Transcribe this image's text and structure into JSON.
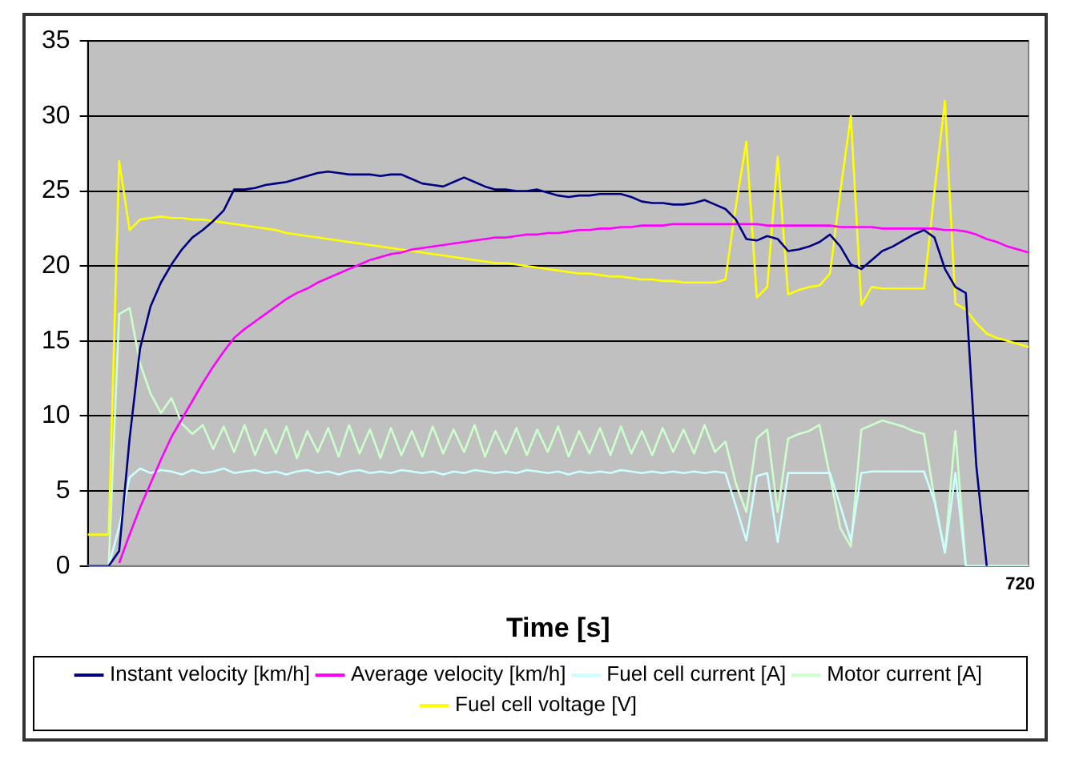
{
  "chart_data": {
    "type": "line",
    "xlabel": "Time [s]",
    "annotations": [
      "720"
    ],
    "ylim": [
      0,
      35
    ],
    "yticks": [
      0,
      5,
      10,
      15,
      20,
      25,
      30,
      35
    ],
    "grid": "y",
    "legend": "bottom",
    "marker": "none",
    "line_style": "solid",
    "categories": [
      null,
      null,
      null,
      null,
      null,
      null,
      null,
      null,
      null,
      null,
      null,
      null,
      null,
      null,
      null,
      null,
      null,
      null,
      null,
      null,
      null,
      null,
      null,
      null,
      null,
      null,
      null,
      null,
      null,
      null,
      null,
      null,
      null,
      null,
      null,
      null,
      null,
      null,
      null,
      null,
      null,
      null,
      null,
      null,
      null,
      null,
      null,
      null,
      null,
      null,
      null,
      null,
      null,
      null,
      null,
      null,
      null,
      null,
      null,
      null,
      null,
      null,
      null,
      null,
      null,
      null,
      null,
      null,
      null,
      null,
      null,
      null,
      null,
      null,
      null,
      null,
      null,
      null,
      null,
      null,
      null,
      null,
      null,
      null,
      null,
      null,
      null,
      null,
      null,
      null,
      null
    ],
    "series": [
      {
        "name": "Instant velocity [km/h]",
        "color": "#000080",
        "values": [
          0,
          0,
          0,
          1.0,
          8.5,
          14.5,
          17.3,
          18.9,
          20.1,
          21.1,
          21.9,
          22.4,
          23.0,
          23.7,
          25.1,
          25.1,
          25.2,
          25.4,
          25.5,
          25.6,
          25.8,
          26.0,
          26.2,
          26.3,
          26.2,
          26.1,
          26.1,
          26.1,
          26.0,
          26.1,
          26.1,
          25.8,
          25.5,
          25.4,
          25.3,
          25.6,
          25.9,
          25.6,
          25.3,
          25.1,
          25.1,
          25.0,
          25.0,
          25.1,
          24.9,
          24.7,
          24.6,
          24.7,
          24.7,
          24.8,
          24.8,
          24.8,
          24.6,
          24.3,
          24.2,
          24.2,
          24.1,
          24.1,
          24.2,
          24.4,
          24.1,
          23.8,
          23.1,
          21.8,
          21.7,
          22.0,
          21.8,
          21.0,
          21.1,
          21.3,
          21.6,
          22.1,
          21.3,
          20.1,
          19.8,
          20.4,
          21.0,
          21.3,
          21.7,
          22.1,
          22.4,
          21.9,
          19.8,
          18.6,
          18.2,
          6.7,
          0,
          null,
          null,
          null,
          null
        ]
      },
      {
        "name": "Average velocity [km/h]",
        "color": "#ff00ff",
        "values": [
          null,
          null,
          null,
          0.2,
          2.1,
          3.9,
          5.5,
          7.1,
          8.6,
          9.8,
          11.0,
          12.2,
          13.3,
          14.3,
          15.2,
          15.8,
          16.3,
          16.8,
          17.3,
          17.8,
          18.2,
          18.5,
          18.9,
          19.2,
          19.5,
          19.8,
          20.1,
          20.4,
          20.6,
          20.8,
          20.9,
          21.1,
          21.2,
          21.3,
          21.4,
          21.5,
          21.6,
          21.7,
          21.8,
          21.9,
          21.9,
          22.0,
          22.1,
          22.1,
          22.2,
          22.2,
          22.3,
          22.4,
          22.4,
          22.5,
          22.5,
          22.6,
          22.6,
          22.7,
          22.7,
          22.7,
          22.8,
          22.8,
          22.8,
          22.8,
          22.8,
          22.8,
          22.8,
          22.8,
          22.8,
          22.7,
          22.7,
          22.7,
          22.7,
          22.7,
          22.7,
          22.7,
          22.6,
          22.6,
          22.6,
          22.6,
          22.5,
          22.5,
          22.5,
          22.5,
          22.5,
          22.5,
          22.4,
          22.4,
          22.3,
          22.1,
          21.8,
          21.6,
          21.3,
          21.1,
          20.9
        ]
      },
      {
        "name": "Fuel cell current [A]",
        "color": "#ccffff",
        "values": [
          0,
          0,
          0,
          2.6,
          5.9,
          6.5,
          6.2,
          6.4,
          6.3,
          6.1,
          6.4,
          6.2,
          6.3,
          6.5,
          6.2,
          6.3,
          6.4,
          6.2,
          6.3,
          6.1,
          6.3,
          6.4,
          6.2,
          6.3,
          6.1,
          6.3,
          6.4,
          6.2,
          6.3,
          6.2,
          6.4,
          6.3,
          6.2,
          6.3,
          6.1,
          6.3,
          6.2,
          6.4,
          6.3,
          6.2,
          6.3,
          6.2,
          6.4,
          6.3,
          6.2,
          6.3,
          6.1,
          6.3,
          6.2,
          6.3,
          6.2,
          6.4,
          6.3,
          6.2,
          6.3,
          6.2,
          6.3,
          6.2,
          6.3,
          6.2,
          6.3,
          6.2,
          4.0,
          1.7,
          6.0,
          6.2,
          1.6,
          6.2,
          6.2,
          6.2,
          6.2,
          6.2,
          4.0,
          1.7,
          6.2,
          6.3,
          6.3,
          6.3,
          6.3,
          6.3,
          6.3,
          4.3,
          0.9,
          6.2,
          0,
          0,
          0,
          0,
          0,
          0,
          0
        ]
      },
      {
        "name": "Motor current [A]",
        "color": "#ccffcc",
        "values": [
          0,
          0,
          0,
          16.8,
          17.2,
          13.5,
          11.5,
          10.2,
          11.2,
          9.5,
          8.8,
          9.4,
          7.8,
          9.3,
          7.6,
          9.4,
          7.4,
          9.1,
          7.5,
          9.3,
          7.2,
          9.0,
          7.6,
          9.2,
          7.3,
          9.4,
          7.5,
          9.1,
          7.2,
          9.2,
          7.4,
          9.0,
          7.3,
          9.3,
          7.5,
          9.1,
          7.6,
          9.4,
          7.3,
          9.0,
          7.5,
          9.2,
          7.4,
          9.1,
          7.6,
          9.3,
          7.3,
          9.0,
          7.5,
          9.2,
          7.4,
          9.3,
          7.5,
          9.0,
          7.4,
          9.2,
          7.6,
          9.1,
          7.5,
          9.4,
          7.6,
          8.3,
          5.5,
          3.6,
          8.5,
          9.1,
          3.6,
          8.5,
          8.8,
          9.0,
          9.4,
          6.0,
          2.5,
          1.3,
          9.1,
          9.4,
          9.7,
          9.5,
          9.3,
          9.0,
          8.8,
          4.5,
          0.9,
          9.0,
          0,
          0,
          0,
          0,
          0,
          0,
          0
        ]
      },
      {
        "name": "Fuel cell voltage [V]",
        "color": "#ffff00",
        "values": [
          2.1,
          2.1,
          2.1,
          27.0,
          22.4,
          23.1,
          23.2,
          23.3,
          23.2,
          23.2,
          23.1,
          23.1,
          23.0,
          22.9,
          22.8,
          22.7,
          22.6,
          22.5,
          22.4,
          22.2,
          22.1,
          22.0,
          21.9,
          21.8,
          21.7,
          21.6,
          21.5,
          21.4,
          21.3,
          21.2,
          21.1,
          21.0,
          20.9,
          20.8,
          20.7,
          20.6,
          20.5,
          20.4,
          20.3,
          20.2,
          20.2,
          20.1,
          20.0,
          19.9,
          19.8,
          19.7,
          19.6,
          19.5,
          19.5,
          19.4,
          19.3,
          19.3,
          19.2,
          19.1,
          19.1,
          19.0,
          19.0,
          18.9,
          18.9,
          18.9,
          18.9,
          19.1,
          24.0,
          28.3,
          17.9,
          18.6,
          27.3,
          18.1,
          18.4,
          18.6,
          18.7,
          19.5,
          25.0,
          30.0,
          17.4,
          18.6,
          18.5,
          18.5,
          18.5,
          18.5,
          18.5,
          25.0,
          31.0,
          17.5,
          17.1,
          16.2,
          15.5,
          15.2,
          15.0,
          14.8,
          14.6
        ]
      }
    ]
  }
}
